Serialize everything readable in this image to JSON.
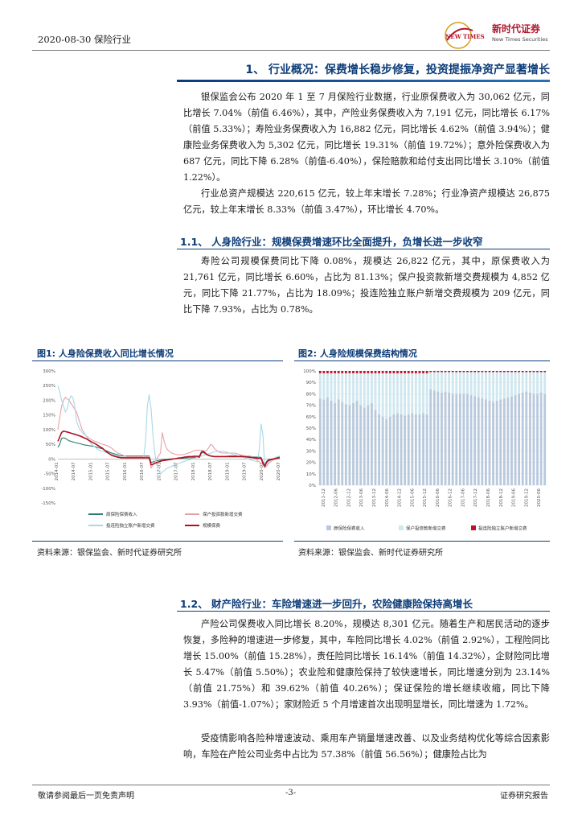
{
  "header": {
    "date_section": "2020-08-30  保险行业",
    "logo_name": "新时代证券",
    "logo_sub": "New Times Securities",
    "logo_emblem": "NEW TIMES"
  },
  "section1": {
    "title": "1、 行业概况：保费增长稳步修复，投资提振净资产显著增长",
    "para1": "银保监会公布 2020 年 1 至 7 月保险行业数据，行业原保费收入为 30,062 亿元，同比增长 7.04%（前值 6.46%），其中，产险业务保费收入为 7,191 亿元，同比增长 6.17%（前值 5.33%）；寿险业务保费收入为 16,882 亿元，同比增长 4.62%（前值 3.94%）；健康险业务保费收入为 5,302 亿元，同比增长 19.31%（前值 19.72%）；意外险保费收入为 687 亿元，同比下降 6.28%（前值-6.40%），保险赔款和给付支出同比增长 3.10%（前值 1.22%）。",
    "para2": "行业总资产规模达 220,615 亿元，较上年末增长 7.28%；行业净资产规模达 26,875 亿元，较上年末增长 8.33%（前值 3.47%），环比增长 4.70%。"
  },
  "section11": {
    "title": "1.1、 人身险行业：规模保费增速环比全面提升，负增长进一步收窄",
    "para": "寿险公司规模保费同比下降 0.08%，规模达 26,822 亿元，其中，原保费收入为 21,761 亿元，同比增长 6.60%，占比为 81.13%；保户投资款新增交费规模为 4,852 亿元，同比下降 21.77%，占比为 18.09%；投连险独立账户新增交费规模为 209 亿元，同比下降 7.93%，占比为 0.78%。"
  },
  "figure1": {
    "title": "图1:   人身险保费收入同比增长情况",
    "source": "资料来源：银保监会、新时代证券研究所"
  },
  "figure2": {
    "title": "图2:   人身险规模保费结构情况",
    "source": "资料来源：银保监会、新时代证券研究所"
  },
  "chart_data": [
    {
      "type": "line",
      "yticks": [
        "300%",
        "250%",
        "200%",
        "150%",
        "100%",
        "50%",
        "0%",
        "-50%",
        "-100%",
        "-150%"
      ],
      "ylim": [
        -150,
        300
      ],
      "x": [
        0,
        1,
        2,
        3,
        4,
        5,
        6,
        7,
        8,
        9,
        10,
        11,
        12,
        13,
        14,
        15,
        16,
        17,
        18,
        19,
        20,
        21,
        22,
        23,
        24,
        25,
        26,
        27,
        28,
        29,
        30,
        31,
        32,
        33,
        34,
        35,
        36,
        37,
        38,
        39,
        40,
        41,
        42,
        43,
        44,
        45,
        46,
        47,
        48,
        49,
        50,
        51,
        52,
        53,
        54,
        55,
        56,
        57,
        58,
        59,
        60,
        61,
        62,
        63,
        64,
        65,
        66,
        67,
        68,
        69,
        70,
        71,
        72,
        73,
        74,
        75,
        76,
        77,
        78,
        79,
        80,
        81,
        82,
        83,
        84,
        85,
        86,
        87,
        88,
        89,
        90,
        91,
        92,
        93,
        94,
        95,
        96,
        97,
        98,
        99,
        100,
        101,
        102,
        103,
        104,
        105,
        106,
        107,
        108,
        109,
        110,
        111,
        112,
        113,
        114,
        115,
        116,
        117,
        118,
        119
      ],
      "xlabels": [
        "2014-01",
        "2014-07",
        "2015-01",
        "2015-07",
        "2016-01",
        "2016-07",
        "2017-01",
        "2017-07",
        "2018-01",
        "2018-07",
        "2019-01",
        "2019-07",
        "2020-01",
        "2020-07"
      ],
      "series": [
        {
          "name": "原保险保费收入",
          "color": "#2e7d6e",
          "values": [
            40,
            50,
            70,
            72,
            70,
            66,
            62,
            60,
            58,
            56,
            55,
            53,
            52,
            50,
            48,
            47,
            46,
            45,
            44,
            43,
            42,
            40,
            38,
            36,
            34,
            30,
            28,
            25,
            22,
            20,
            18,
            16,
            14,
            12,
            11,
            10,
            10,
            10,
            10,
            10,
            10,
            10,
            10,
            10,
            10,
            10,
            10,
            10,
            10,
            10,
            -12,
            -10,
            -8,
            -6,
            -5,
            -4,
            -3,
            -2,
            -2,
            -1,
            0,
            0,
            0,
            1,
            1,
            2,
            2,
            2,
            3,
            3,
            4,
            4,
            4,
            5,
            5,
            5,
            5,
            20,
            22,
            18,
            14,
            12,
            10,
            9,
            8,
            8,
            8,
            8,
            8,
            8,
            9,
            9,
            10,
            10,
            10,
            10,
            10,
            10,
            10,
            10,
            10,
            9,
            8,
            8,
            7,
            7,
            6,
            6,
            6,
            5,
            -10,
            -20,
            -8,
            -2,
            -1,
            0,
            1,
            3,
            5,
            7
          ]
        },
        {
          "name": "保户投资款新增交费",
          "color": "#e8a0a8",
          "values": [
            100,
            140,
            180,
            200,
            210,
            205,
            200,
            190,
            180,
            170,
            160,
            140,
            120,
            100,
            90,
            80,
            75,
            70,
            66,
            62,
            60,
            58,
            55,
            52,
            50,
            48,
            46,
            44,
            40,
            36,
            30,
            25,
            20,
            18,
            15,
            12,
            10,
            8,
            8,
            8,
            8,
            8,
            8,
            8,
            8,
            8,
            8,
            8,
            8,
            8,
            -30,
            -20,
            -10,
            0,
            10,
            20,
            90,
            60,
            40,
            30,
            25,
            20,
            18,
            16,
            15,
            14,
            14,
            15,
            16,
            18,
            20,
            22,
            25,
            28,
            30,
            30,
            30,
            30,
            28,
            26,
            30,
            40,
            50,
            45,
            35,
            30,
            25,
            22,
            20,
            20,
            20,
            20,
            20,
            20,
            20,
            20,
            18,
            16,
            14,
            12,
            10,
            10,
            10,
            10,
            8,
            5,
            0,
            -5,
            -10,
            -15,
            -20,
            -30,
            -25,
            -15,
            -10,
            -5,
            -2,
            0,
            2,
            4
          ]
        },
        {
          "name": "投连险独立账户新增交费",
          "color": "#a8d8e8",
          "values": [
            250,
            230,
            200,
            180,
            160,
            170,
            200,
            215,
            210,
            180,
            130,
            110,
            100,
            90,
            85,
            80,
            70,
            60,
            50,
            45,
            40,
            35,
            30,
            28,
            26,
            24,
            22,
            20,
            18,
            16,
            14,
            12,
            10,
            8,
            6,
            5,
            5,
            5,
            5,
            5,
            5,
            5,
            5,
            5,
            5,
            5,
            5,
            60,
            180,
            220,
            170,
            80,
            20,
            -20,
            -40,
            -50,
            -45,
            -40,
            -35,
            -30,
            -28,
            -25,
            -22,
            -20,
            -18,
            -15,
            -12,
            -10,
            -8,
            -6,
            -4,
            -2,
            0,
            2,
            4,
            6,
            8,
            10,
            12,
            14,
            16,
            18,
            20,
            22,
            24,
            26,
            26,
            26,
            26,
            26,
            24,
            22,
            20,
            18,
            16,
            14,
            12,
            10,
            8,
            6,
            4,
            2,
            0,
            -2,
            -4,
            -6,
            -8,
            -10,
            30,
            120,
            80,
            -30,
            -20,
            -10,
            -5,
            0,
            3,
            6,
            8,
            10
          ]
        },
        {
          "name": "规模保费",
          "color": "#b01020",
          "values": [
            60,
            75,
            90,
            95,
            93,
            92,
            90,
            88,
            86,
            84,
            82,
            80,
            78,
            75,
            72,
            70,
            66,
            62,
            58,
            55,
            52,
            48,
            44,
            40,
            36,
            30,
            25,
            20,
            16,
            12,
            10,
            8,
            6,
            5,
            4,
            4,
            4,
            4,
            4,
            4,
            4,
            4,
            4,
            4,
            4,
            4,
            4,
            4,
            4,
            4,
            -20,
            -18,
            -15,
            -12,
            -10,
            -8,
            -6,
            -5,
            -4,
            -3,
            -2,
            -1,
            0,
            1,
            2,
            3,
            4,
            5,
            6,
            7,
            8,
            8,
            8,
            9,
            9,
            9,
            9,
            24,
            26,
            20,
            15,
            12,
            10,
            9,
            8,
            8,
            8,
            8,
            8,
            8,
            8,
            8,
            8,
            8,
            8,
            8,
            8,
            8,
            8,
            8,
            8,
            7,
            6,
            5,
            5,
            4,
            3,
            3,
            2,
            2,
            -15,
            -25,
            -10,
            -5,
            -3,
            -1,
            0,
            1,
            3,
            4
          ]
        }
      ]
    },
    {
      "type": "bar",
      "stacked": true,
      "yticks": [
        "100%",
        "90%",
        "80%",
        "70%",
        "60%",
        "50%",
        "40%",
        "30%",
        "20%",
        "10%",
        "0%"
      ],
      "ylim": [
        0,
        100
      ],
      "xlabels": [
        "2011-12",
        "2012-06",
        "2012-12",
        "2013-06",
        "2013-12",
        "2014-06",
        "2014-12",
        "2015-06",
        "2015-12",
        "2016-06",
        "2016-12",
        "2017-06",
        "2017-12",
        "2018-06",
        "2018-12",
        "2019-06",
        "2019-12",
        "2020-06"
      ],
      "series": [
        {
          "name": "原保险保费收入",
          "color": "#b9c9dd",
          "values": [
            76,
            75,
            77,
            74,
            72,
            75,
            73,
            71,
            70,
            72,
            74,
            70,
            68,
            70,
            72,
            66,
            62,
            60,
            58,
            60,
            62,
            63,
            62,
            61,
            62,
            63,
            62,
            62,
            63,
            62,
            84,
            83,
            82,
            81,
            82,
            81,
            80,
            80,
            80,
            80,
            80,
            79,
            78,
            77,
            76,
            75,
            74,
            73,
            74,
            75,
            76,
            77,
            78,
            79,
            80,
            81,
            82,
            81,
            80,
            80,
            81,
            80
          ]
        },
        {
          "name": "保户投资款新增交费",
          "color": "#cfe7ef",
          "values": [
            22,
            23,
            21,
            24,
            26,
            23,
            25,
            27,
            28,
            26,
            24,
            28,
            30,
            28,
            26,
            32,
            36,
            38,
            40,
            38,
            36,
            35,
            36,
            37,
            36,
            35,
            36,
            36,
            35,
            36,
            15,
            16,
            17,
            18,
            17,
            18,
            19,
            19,
            19,
            19,
            19,
            20,
            21,
            22,
            23,
            24,
            25,
            26,
            25,
            24,
            23,
            22,
            21,
            20,
            19,
            18,
            17,
            18,
            19,
            19,
            18,
            19
          ]
        },
        {
          "name": "投连险独立账户新增交费",
          "color": "#c0102a",
          "values": [
            2,
            2,
            2,
            2,
            2,
            2,
            2,
            2,
            2,
            2,
            2,
            2,
            2,
            2,
            2,
            2,
            2,
            2,
            2,
            2,
            2,
            2,
            2,
            2,
            2,
            2,
            2,
            2,
            2,
            2,
            1,
            1,
            1,
            1,
            1,
            1,
            1,
            1,
            1,
            1,
            1,
            1,
            1,
            1,
            1,
            1,
            1,
            1,
            1,
            1,
            1,
            1,
            1,
            1,
            1,
            1,
            1,
            1,
            1,
            1,
            1,
            1
          ]
        }
      ]
    }
  ],
  "section12": {
    "title": "1.2、 财产险行业：车险增速进一步回升，农险健康险保持高增长",
    "para1": "产险公司保费收入同比增长 8.20%，规模达 8,301 亿元。随着生产和居民活动的逐步恢复，多险种的增速进一步修复，其中，车险同比增长 4.02%（前值 2.92%），工程险同比增长 15.00%（前值 15.28%），责任险同比增长 16.14%（前值 14.32%），企财险同比增长 5.47%（前值 5.50%）；农业险和健康险保持了较快速增长，同比增速分别为 23.14%（前值 21.75%）和 39.62%（前值 40.26%）；保证保险的增长继续收缩，同比下降 3.93%（前值-1.07%）；家财险近 5 个月增速首次出现明显增长，同比增速为 1.72%。",
    "para2": "受疫情影响各险种增速波动、乘用车产销量增速改善、以及业务结构优化等综合因素影响，车险在产险公司业务中占比为 57.38%（前值 56.56%）；健康险占比为"
  },
  "footer": {
    "left": "敬请参阅最后一页免责声明",
    "center": "-3-",
    "right": "证券研究报告"
  }
}
